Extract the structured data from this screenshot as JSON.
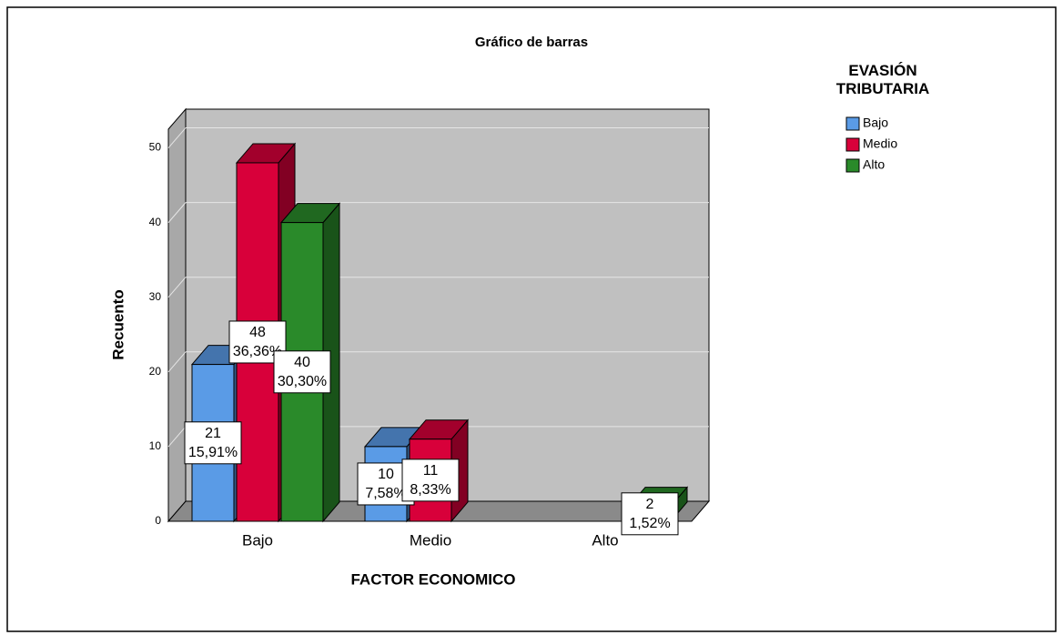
{
  "chart_data": {
    "type": "bar3d",
    "title": "Gráfico de barras",
    "x_label": "FACTOR ECONOMICO",
    "y_label": "Recuento",
    "legend_title": "EVASIÓN TRIBUTARIA",
    "legend_position": "top-right",
    "categories": [
      "Bajo",
      "Medio",
      "Alto"
    ],
    "series": [
      {
        "name": "Bajo",
        "color": "#5a9be6",
        "values": [
          21,
          10,
          null
        ],
        "percent_labels": [
          "15,91%",
          "7,58%",
          null
        ]
      },
      {
        "name": "Medio",
        "color": "#d8003a",
        "values": [
          48,
          11,
          null
        ],
        "percent_labels": [
          "36,36%",
          "8,33%",
          null
        ]
      },
      {
        "name": "Alto",
        "color": "#2a8a2a",
        "values": [
          40,
          null,
          2
        ],
        "percent_labels": [
          "30,30%",
          null,
          "1,52%"
        ]
      }
    ],
    "ylim": [
      0,
      52.5
    ],
    "yticks": [
      0,
      10,
      20,
      30,
      40,
      50
    ],
    "grid": true
  }
}
